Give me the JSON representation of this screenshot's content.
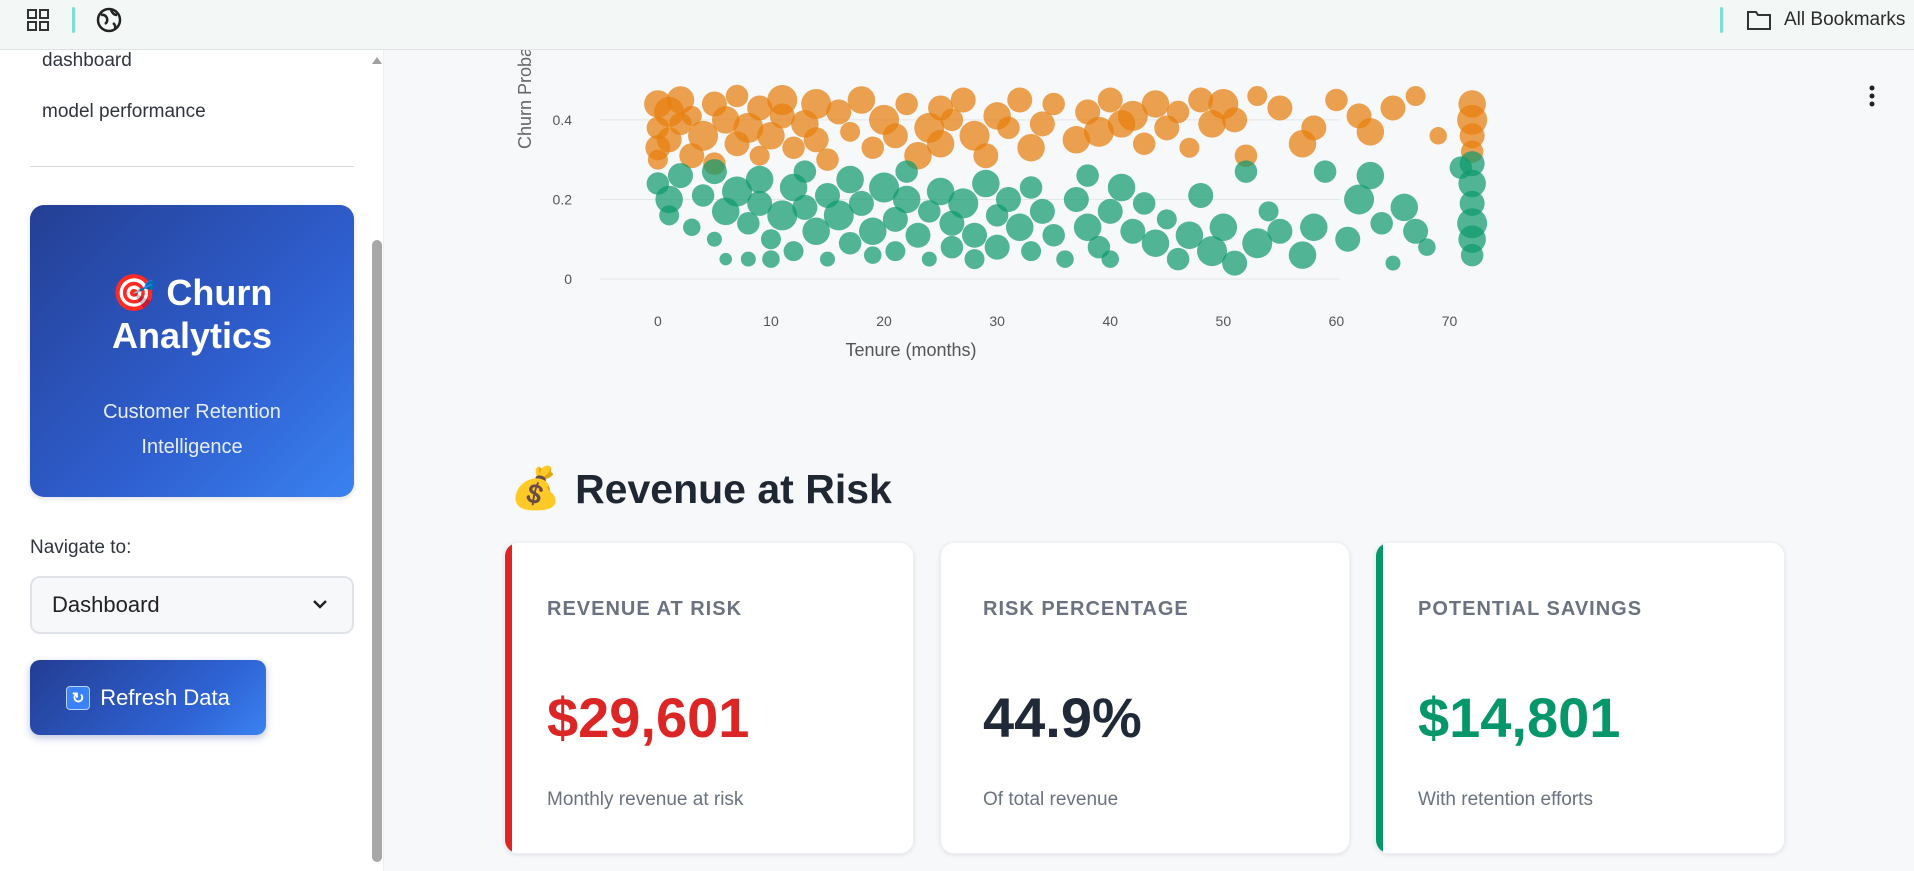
{
  "browser": {
    "bookmarks_label": "All Bookmarks"
  },
  "sidebar": {
    "links": [
      "dashboard",
      "model performance"
    ],
    "brand": {
      "emoji": "🎯",
      "title": "Churn Analytics",
      "subtitle": "Customer Retention Intelligence"
    },
    "nav_label": "Navigate to:",
    "nav_selected": "Dashboard",
    "refresh_label": "Refresh Data"
  },
  "section": {
    "emoji": "💰",
    "title": "Revenue at Risk"
  },
  "cards": [
    {
      "label": "REVENUE AT RISK",
      "value": "$29,601",
      "note": "Monthly revenue at risk",
      "color": "#dc2626",
      "accent": "#dc2626"
    },
    {
      "label": "RISK PERCENTAGE",
      "value": "44.9%",
      "note": "Of total revenue",
      "color": "#1f2937",
      "accent": ""
    },
    {
      "label": "POTENTIAL SAVINGS",
      "value": "$14,801",
      "note": "With retention efforts",
      "color": "#059669",
      "accent": "#059669"
    }
  ],
  "chart_data": {
    "type": "scatter",
    "xlabel": "Tenure (months)",
    "ylabel": "Churn Probability",
    "x_ticks": [
      0,
      10,
      20,
      30,
      40,
      50,
      60,
      70
    ],
    "y_ticks": [
      0,
      0.2,
      0.4
    ],
    "xlim": [
      -6,
      78
    ],
    "ylim": [
      0,
      0.47
    ],
    "grid": true,
    "colors": {
      "high_risk": "#e67e0c",
      "low_risk": "#0f9a6e"
    },
    "series": [
      {
        "color": "#e67e0c",
        "points": [
          [
            0,
            0.44,
            11
          ],
          [
            0,
            0.38,
            9
          ],
          [
            0,
            0.33,
            10
          ],
          [
            0,
            0.3,
            8
          ],
          [
            1,
            0.42,
            12
          ],
          [
            1,
            0.35,
            10
          ],
          [
            2,
            0.39,
            9
          ],
          [
            2,
            0.45,
            11
          ],
          [
            3,
            0.31,
            10
          ],
          [
            3,
            0.41,
            8
          ],
          [
            4,
            0.36,
            12
          ],
          [
            5,
            0.44,
            10
          ],
          [
            5,
            0.29,
            9
          ],
          [
            6,
            0.4,
            11
          ],
          [
            7,
            0.34,
            10
          ],
          [
            7,
            0.46,
            9
          ],
          [
            8,
            0.38,
            12
          ],
          [
            9,
            0.43,
            10
          ],
          [
            9,
            0.31,
            8
          ],
          [
            10,
            0.36,
            11
          ],
          [
            11,
            0.41,
            10
          ],
          [
            11,
            0.45,
            12
          ],
          [
            12,
            0.33,
            9
          ],
          [
            13,
            0.39,
            11
          ],
          [
            14,
            0.44,
            12
          ],
          [
            14,
            0.35,
            10
          ],
          [
            15,
            0.3,
            9
          ],
          [
            16,
            0.42,
            10
          ],
          [
            17,
            0.37,
            8
          ],
          [
            18,
            0.45,
            11
          ],
          [
            19,
            0.33,
            9
          ],
          [
            20,
            0.4,
            12
          ],
          [
            21,
            0.36,
            10
          ],
          [
            22,
            0.44,
            9
          ],
          [
            23,
            0.31,
            11
          ],
          [
            24,
            0.38,
            12
          ],
          [
            25,
            0.43,
            10
          ],
          [
            25,
            0.34,
            11
          ],
          [
            26,
            0.4,
            9
          ],
          [
            27,
            0.45,
            10
          ],
          [
            28,
            0.36,
            12
          ],
          [
            29,
            0.31,
            10
          ],
          [
            30,
            0.41,
            11
          ],
          [
            31,
            0.38,
            9
          ],
          [
            32,
            0.45,
            10
          ],
          [
            33,
            0.33,
            11
          ],
          [
            34,
            0.39,
            10
          ],
          [
            35,
            0.44,
            9
          ],
          [
            37,
            0.35,
            11
          ],
          [
            38,
            0.42,
            10
          ],
          [
            39,
            0.37,
            12
          ],
          [
            40,
            0.45,
            10
          ],
          [
            41,
            0.39,
            11
          ],
          [
            42,
            0.41,
            12
          ],
          [
            43,
            0.34,
            9
          ],
          [
            44,
            0.44,
            11
          ],
          [
            45,
            0.38,
            10
          ],
          [
            46,
            0.42,
            9
          ],
          [
            47,
            0.33,
            8
          ],
          [
            48,
            0.45,
            10
          ],
          [
            49,
            0.39,
            11
          ],
          [
            50,
            0.44,
            12
          ],
          [
            51,
            0.4,
            10
          ],
          [
            52,
            0.31,
            9
          ],
          [
            53,
            0.46,
            8
          ],
          [
            55,
            0.43,
            10
          ],
          [
            57,
            0.34,
            11
          ],
          [
            58,
            0.38,
            10
          ],
          [
            60,
            0.45,
            9
          ],
          [
            62,
            0.41,
            10
          ],
          [
            63,
            0.37,
            11
          ],
          [
            65,
            0.43,
            10
          ],
          [
            67,
            0.46,
            8
          ],
          [
            69,
            0.36,
            7
          ],
          [
            72,
            0.44,
            11
          ],
          [
            72,
            0.4,
            12
          ],
          [
            72,
            0.36,
            10
          ],
          [
            72,
            0.32,
            9
          ]
        ]
      },
      {
        "color": "#0f9a6e",
        "points": [
          [
            0,
            0.24,
            9
          ],
          [
            1,
            0.2,
            11
          ],
          [
            1,
            0.16,
            8
          ],
          [
            2,
            0.26,
            10
          ],
          [
            3,
            0.13,
            7
          ],
          [
            4,
            0.21,
            9
          ],
          [
            5,
            0.1,
            6
          ],
          [
            5,
            0.27,
            10
          ],
          [
            6,
            0.17,
            11
          ],
          [
            6,
            0.05,
            5
          ],
          [
            7,
            0.22,
            12
          ],
          [
            8,
            0.14,
            9
          ],
          [
            8,
            0.05,
            6
          ],
          [
            9,
            0.25,
            11
          ],
          [
            9,
            0.19,
            10
          ],
          [
            10,
            0.1,
            8
          ],
          [
            10,
            0.05,
            7
          ],
          [
            11,
            0.16,
            12
          ],
          [
            12,
            0.23,
            11
          ],
          [
            12,
            0.07,
            8
          ],
          [
            13,
            0.18,
            10
          ],
          [
            13,
            0.27,
            9
          ],
          [
            14,
            0.12,
            11
          ],
          [
            15,
            0.21,
            10
          ],
          [
            15,
            0.05,
            6
          ],
          [
            16,
            0.16,
            12
          ],
          [
            17,
            0.09,
            9
          ],
          [
            17,
            0.25,
            11
          ],
          [
            18,
            0.19,
            10
          ],
          [
            19,
            0.12,
            11
          ],
          [
            19,
            0.06,
            7
          ],
          [
            20,
            0.23,
            12
          ],
          [
            21,
            0.15,
            10
          ],
          [
            21,
            0.07,
            8
          ],
          [
            22,
            0.2,
            11
          ],
          [
            22,
            0.27,
            9
          ],
          [
            23,
            0.11,
            10
          ],
          [
            24,
            0.17,
            9
          ],
          [
            24,
            0.05,
            6
          ],
          [
            25,
            0.22,
            11
          ],
          [
            26,
            0.14,
            10
          ],
          [
            26,
            0.08,
            9
          ],
          [
            27,
            0.19,
            12
          ],
          [
            28,
            0.11,
            10
          ],
          [
            28,
            0.05,
            8
          ],
          [
            29,
            0.24,
            11
          ],
          [
            30,
            0.16,
            9
          ],
          [
            30,
            0.08,
            10
          ],
          [
            31,
            0.2,
            10
          ],
          [
            32,
            0.13,
            11
          ],
          [
            33,
            0.07,
            8
          ],
          [
            33,
            0.23,
            9
          ],
          [
            34,
            0.17,
            10
          ],
          [
            35,
            0.11,
            9
          ],
          [
            36,
            0.05,
            7
          ],
          [
            37,
            0.2,
            10
          ],
          [
            38,
            0.13,
            11
          ],
          [
            38,
            0.26,
            9
          ],
          [
            39,
            0.08,
            9
          ],
          [
            40,
            0.17,
            10
          ],
          [
            40,
            0.05,
            7
          ],
          [
            41,
            0.23,
            11
          ],
          [
            42,
            0.12,
            10
          ],
          [
            43,
            0.19,
            9
          ],
          [
            44,
            0.09,
            11
          ],
          [
            45,
            0.15,
            8
          ],
          [
            46,
            0.05,
            9
          ],
          [
            47,
            0.11,
            11
          ],
          [
            48,
            0.21,
            10
          ],
          [
            49,
            0.07,
            12
          ],
          [
            50,
            0.13,
            11
          ],
          [
            51,
            0.04,
            10
          ],
          [
            52,
            0.27,
            9
          ],
          [
            53,
            0.09,
            12
          ],
          [
            54,
            0.17,
            8
          ],
          [
            55,
            0.12,
            10
          ],
          [
            57,
            0.06,
            11
          ],
          [
            58,
            0.13,
            11
          ],
          [
            59,
            0.27,
            9
          ],
          [
            61,
            0.1,
            10
          ],
          [
            62,
            0.2,
            12
          ],
          [
            63,
            0.26,
            11
          ],
          [
            64,
            0.14,
            9
          ],
          [
            65,
            0.04,
            6
          ],
          [
            66,
            0.18,
            11
          ],
          [
            67,
            0.12,
            10
          ],
          [
            68,
            0.08,
            7
          ],
          [
            71,
            0.28,
            9
          ],
          [
            72,
            0.24,
            11
          ],
          [
            72,
            0.19,
            10
          ],
          [
            72,
            0.14,
            12
          ],
          [
            72,
            0.1,
            11
          ],
          [
            72,
            0.06,
            9
          ],
          [
            72,
            0.29,
            10
          ]
        ]
      }
    ]
  }
}
